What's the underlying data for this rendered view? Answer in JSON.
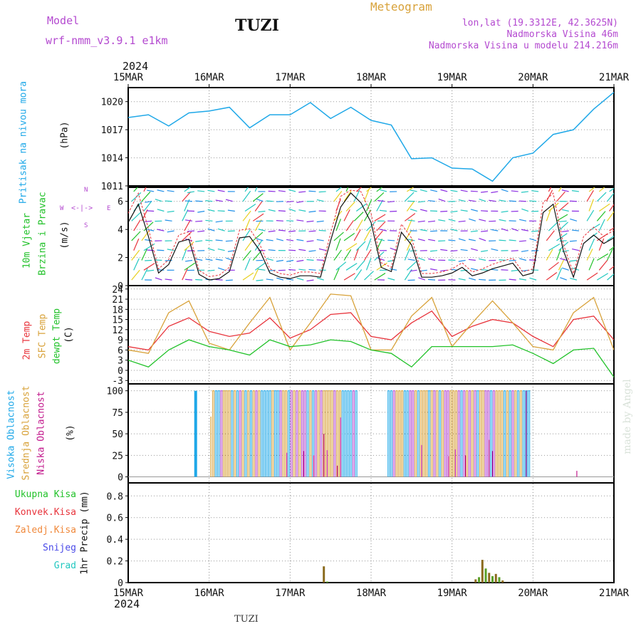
{
  "header": {
    "model_label": "Model",
    "model_value": "wrf-nmm_v3.9.1  e1km",
    "station": "TUZI",
    "meteogram": "Meteogram",
    "lonlat": "lon,lat (19.3312E, 42.3625N)",
    "elevation": "Nadmorska Visina 46m",
    "model_elevation": "Nadmorska Visina u modelu 214.216m",
    "year": "2024",
    "footer_station": "TUZI",
    "credit": "made by Angel"
  },
  "colors": {
    "pressure": "#1fa8e8",
    "temp2m": "#e8343c",
    "sfc": "#d8a23a",
    "dew": "#22c22a",
    "high": "#1fa8e8",
    "mid": "#d8a23a",
    "low": "#c2188c",
    "precip": "#8b6b1e",
    "purple": "#b44ad0"
  },
  "dates": [
    "15MAR",
    "16MAR",
    "17MAR",
    "18MAR",
    "19MAR",
    "20MAR",
    "21MAR"
  ],
  "panels": {
    "pressure": {
      "label1": "Pritisak na nivou mora",
      "label2": "(hPa)",
      "ticks": [
        "1020",
        "1017",
        "1014",
        "1011"
      ]
    },
    "wind": {
      "label1": "10m Vjetar",
      "label2": "Brzina i Pravac",
      "label3": "(m/s)",
      "ticks": [
        "6",
        "4",
        "2",
        "0"
      ],
      "compass_w": "W",
      "compass_e": "E",
      "compass_n": "N",
      "compass_s": "S"
    },
    "temp": {
      "label1": "2m Temp",
      "label2": "SFC Temp",
      "label3": "dewpt Temp",
      "label4": "(C)",
      "ticks": [
        "24",
        "21",
        "18",
        "15",
        "12",
        "9",
        "6",
        "3",
        "0",
        "-3"
      ]
    },
    "cloud": {
      "label1": "Visoka Oblacnost",
      "label2": "Srednja Oblacnost",
      "label3": "Niska Oblacnost",
      "label4": "(%)",
      "ticks": [
        "100",
        "75",
        "50",
        "25",
        "0"
      ]
    },
    "precip": {
      "label1": "Ukupna Kisa",
      "label2": "Konvek.Kisa",
      "label3": "Zaledj.Kisa",
      "label4": "Snijeg",
      "label5": "Grad",
      "label6": "1hr Precip (mm)",
      "ticks": [
        "0.8",
        "0.6",
        "0.4",
        "0.2",
        "0"
      ]
    }
  },
  "chart_data": [
    {
      "type": "line",
      "title": "Pritisak na nivou mora",
      "ylabel": "(hPa)",
      "ylim": [
        1011,
        1021.5
      ],
      "x_hours": [
        0,
        6,
        12,
        18,
        24,
        30,
        36,
        42,
        48,
        54,
        60,
        66,
        72,
        78,
        84,
        90,
        96,
        102,
        108,
        114,
        120,
        126,
        132,
        138,
        144
      ],
      "series": [
        {
          "name": "Pritisak na nivou mora",
          "values": [
            1018.3,
            1018.6,
            1017.4,
            1018.8,
            1019.0,
            1019.4,
            1017.2,
            1018.6,
            1018.6,
            1019.9,
            1018.2,
            1019.4,
            1018.0,
            1017.5,
            1013.9,
            1014.0,
            1012.9,
            1012.8,
            1011.5,
            1014.0,
            1014.5,
            1016.5,
            1017.0,
            1019.2,
            1021.0
          ]
        }
      ]
    },
    {
      "type": "line",
      "title": "10m Vjetar Brzina i Pravac",
      "ylabel": "(m/s)",
      "ylim": [
        0,
        7
      ],
      "x_hours": [
        0,
        3,
        6,
        9,
        12,
        15,
        18,
        21,
        24,
        27,
        30,
        33,
        36,
        39,
        42,
        45,
        48,
        51,
        54,
        57,
        60,
        63,
        66,
        69,
        72,
        75,
        78,
        81,
        84,
        87,
        90,
        93,
        96,
        99,
        102,
        105,
        108,
        111,
        114,
        117,
        120,
        123,
        126,
        129,
        132,
        135,
        138,
        141,
        144
      ],
      "series": [
        {
          "name": "Brzina",
          "values": [
            4.5,
            5.8,
            3.5,
            0.9,
            1.5,
            3.1,
            3.3,
            0.8,
            0.4,
            0.5,
            1.0,
            3.4,
            3.5,
            2.5,
            0.9,
            0.6,
            0.5,
            0.7,
            0.7,
            0.6,
            3.2,
            5.6,
            6.6,
            5.9,
            4.5,
            1.3,
            1.0,
            3.8,
            2.9,
            0.6,
            0.6,
            0.7,
            0.9,
            1.3,
            0.7,
            0.9,
            1.2,
            1.4,
            1.6,
            0.7,
            0.9,
            5.2,
            5.8,
            2.5,
            0.6,
            3.0,
            3.6,
            3.0,
            3.4
          ]
        }
      ]
    },
    {
      "type": "line",
      "title": "Temperature",
      "ylabel": "(C)",
      "ylim": [
        -3,
        24
      ],
      "x_hours": [
        0,
        6,
        12,
        18,
        24,
        30,
        36,
        42,
        48,
        54,
        60,
        66,
        72,
        78,
        84,
        90,
        96,
        102,
        108,
        114,
        120,
        126,
        132,
        138,
        144
      ],
      "series": [
        {
          "name": "2m Temp",
          "values": [
            7,
            6,
            13,
            15.5,
            11.5,
            10,
            11,
            15.5,
            9.5,
            12,
            16.5,
            17,
            10,
            9,
            14,
            17.5,
            10,
            13,
            15,
            14,
            10,
            7,
            15,
            16,
            9
          ]
        },
        {
          "name": "SFC Temp",
          "values": [
            6,
            5,
            17,
            20.5,
            8,
            6,
            14,
            21.5,
            6,
            14,
            22.5,
            22,
            6,
            6,
            16,
            21.5,
            7,
            14,
            20.5,
            14,
            7,
            6,
            17,
            21.5,
            6
          ]
        },
        {
          "name": "dewpt Temp",
          "values": [
            3,
            1,
            6,
            9,
            7,
            6,
            4.5,
            9,
            7,
            7.5,
            9,
            8.5,
            6,
            5,
            1,
            7,
            7,
            7,
            7,
            7.5,
            5,
            2,
            6,
            6.5,
            -2
          ]
        }
      ]
    },
    {
      "type": "bar",
      "title": "Oblacnost",
      "ylabel": "(%)",
      "ylim": [
        0,
        100
      ],
      "series": [
        {
          "name": "Visoka Oblacnost",
          "note": "100% near 15MAR 20h, 16MAR-17MAR 20h, 18MAR 04h-19MAR 20h"
        },
        {
          "name": "Srednja Oblacnost",
          "note": "100% 16MAR 01h-17MAR 20h, 18MAR 04h-19MAR 23h"
        },
        {
          "name": "Niska Oblacnost",
          "values_hint": "peaks ~69% near 17MAR 23h, ~43% near 19MAR 11h"
        }
      ]
    },
    {
      "type": "bar",
      "title": "1hr Precip",
      "ylabel": "(mm)",
      "ylim": [
        0,
        0.9
      ],
      "x_hours": [
        58,
        59,
        103,
        104,
        105,
        106,
        107,
        108,
        109,
        110,
        111
      ],
      "series": [
        {
          "name": "Ukupna Kisa",
          "values": [
            0.15,
            0.01,
            0.03,
            0.05,
            0.21,
            0.13,
            0.09,
            0.06,
            0.08,
            0.05,
            0.02
          ]
        }
      ]
    }
  ]
}
